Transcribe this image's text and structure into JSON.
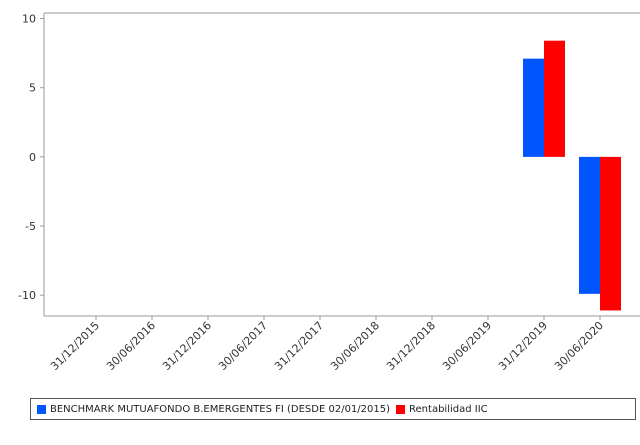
{
  "chart_data": {
    "type": "bar",
    "categories": [
      "31/12/2015",
      "30/06/2016",
      "31/12/2016",
      "30/06/2017",
      "31/12/2017",
      "30/06/2018",
      "31/12/2018",
      "30/06/2019",
      "31/12/2019",
      "30/06/2020"
    ],
    "series": [
      {
        "name": "BENCHMARK MUTUAFONDO B.EMERGENTES FI (DESDE 02/01/2015)",
        "color": "#0055ff",
        "values": [
          null,
          null,
          null,
          null,
          null,
          null,
          null,
          null,
          7.1,
          -9.9
        ]
      },
      {
        "name": "Rentabilidad IIC",
        "color": "#ff0000",
        "values": [
          null,
          null,
          null,
          null,
          null,
          null,
          null,
          null,
          8.4,
          -11.1
        ]
      }
    ],
    "y_ticks": [
      "10",
      "5",
      "0",
      "-5",
      "-10"
    ],
    "ylim": [
      -11.5,
      10.4
    ],
    "grid": false,
    "legend_position": "bottom"
  }
}
